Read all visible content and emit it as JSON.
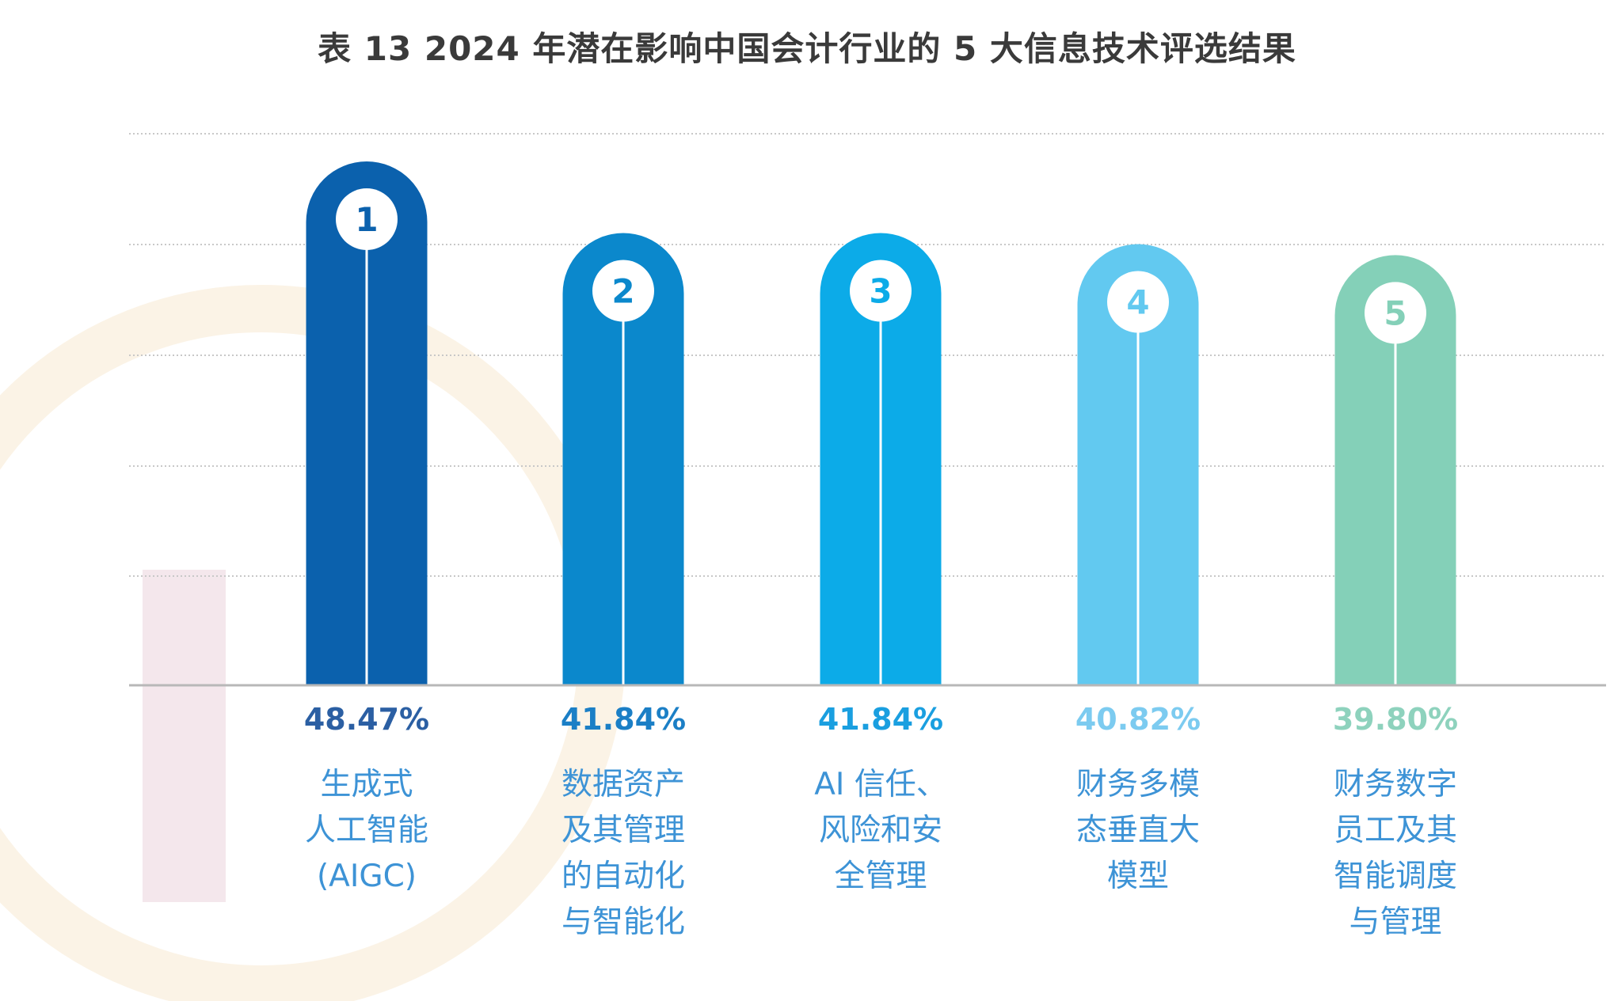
{
  "chart_data": {
    "type": "bar",
    "title": "表 13  2024 年潜在影响中国会计行业的 5 大信息技术评选结果",
    "xlabel": "",
    "ylabel": "",
    "ylim": [
      0,
      48.47
    ],
    "grid": true,
    "categories": [
      [
        "生成式",
        "人工智能",
        "(AIGC)"
      ],
      [
        "数据资产",
        "及其管理",
        "的自动化",
        "与智能化"
      ],
      [
        "AI 信任、",
        "风险和安",
        "全管理"
      ],
      [
        "财务多模",
        "态垂直大",
        "模型"
      ],
      [
        "财务数字",
        "员工及其",
        "智能调度",
        "与管理"
      ]
    ],
    "ranks": [
      "1",
      "2",
      "3",
      "4",
      "5"
    ],
    "values": [
      48.47,
      41.84,
      41.84,
      40.82,
      39.8
    ],
    "value_labels": [
      "48.47%",
      "41.84%",
      "41.84%",
      "40.82%",
      "39.80%"
    ],
    "bar_colors": [
      "#0b61ad",
      "#0b88cc",
      "#0cabe8",
      "#62c9f0",
      "#84d0b8"
    ],
    "value_label_colors": [
      "#2b5fa3",
      "#1b7fc6",
      "#1a9fe0",
      "#7ccbf0",
      "#8ed2bd"
    ],
    "category_label_color": "#3d93d6"
  }
}
